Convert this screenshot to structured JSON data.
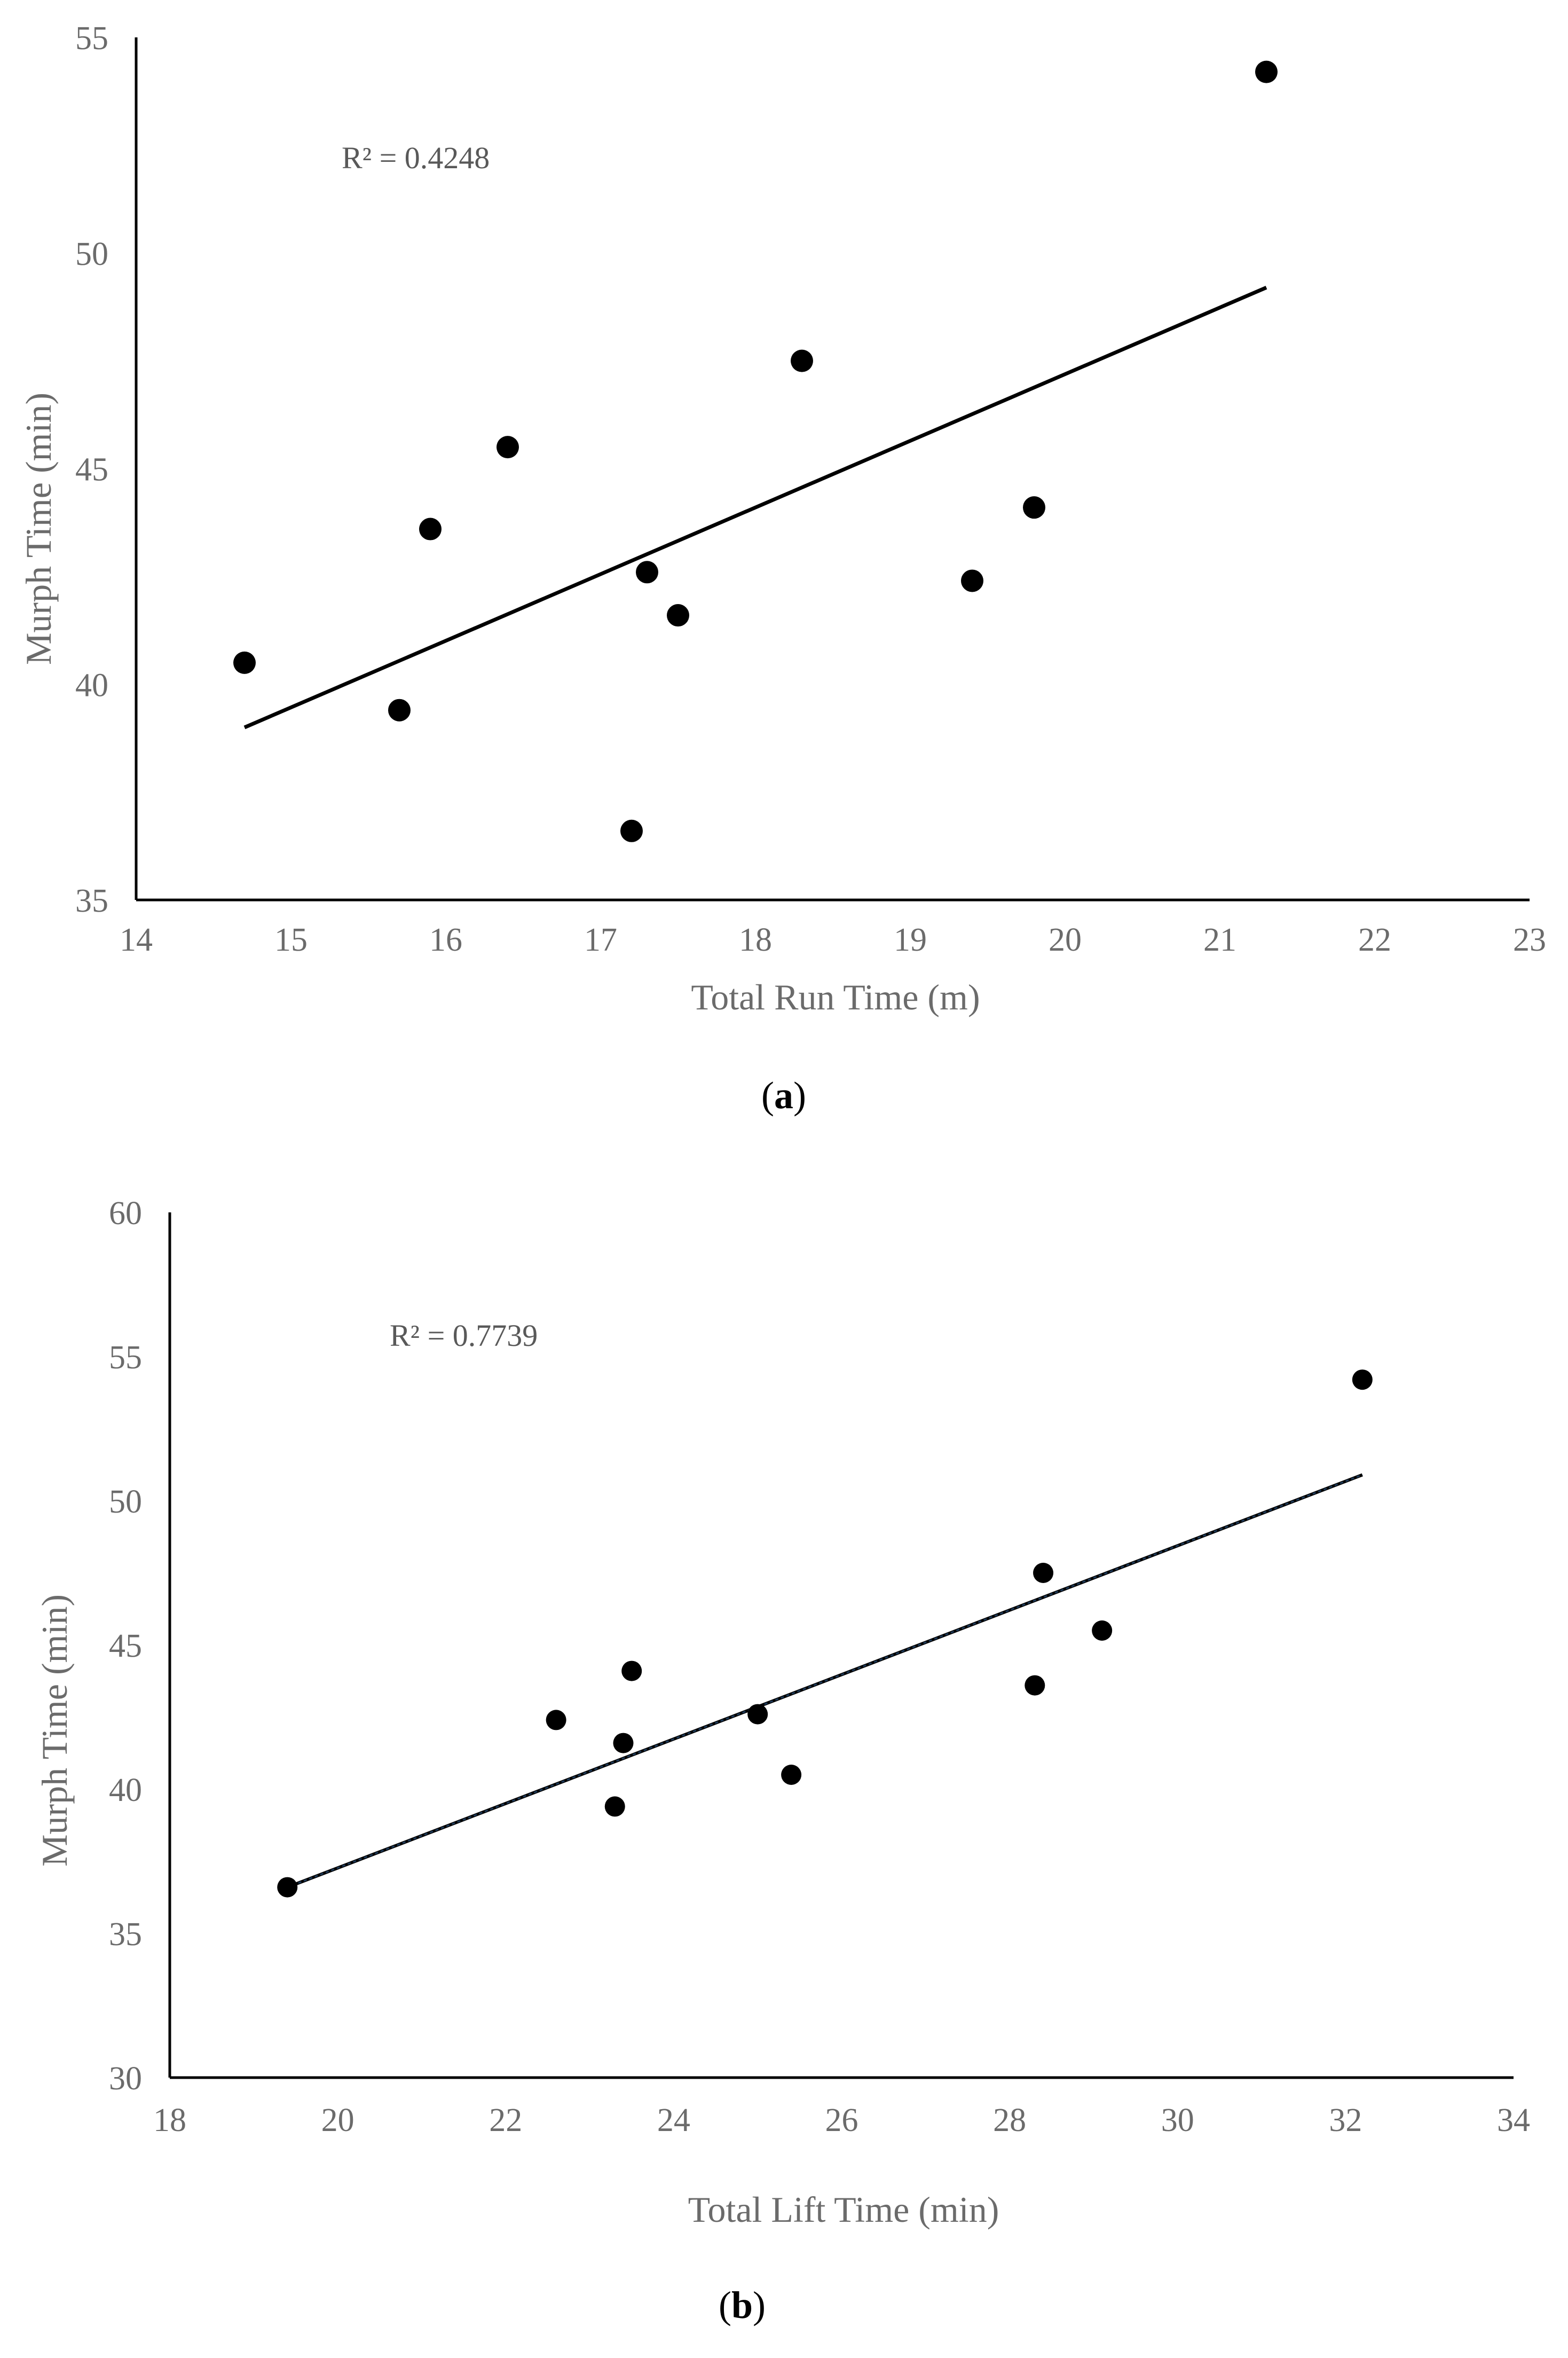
{
  "chart_data": [
    {
      "id": "a",
      "type": "scatter",
      "caption_paren_open": "(",
      "caption_letter": "a",
      "caption_paren_close": ")",
      "xlabel": "Total Run Time (m)",
      "ylabel": "Murph Time (min)",
      "xlim": [
        14,
        23
      ],
      "ylim": [
        35,
        55
      ],
      "xticks": [
        14,
        15,
        16,
        17,
        18,
        19,
        20,
        21,
        22,
        23
      ],
      "yticks": [
        35,
        40,
        45,
        50,
        55
      ],
      "r2_label": "R² = 0.4248",
      "points": [
        {
          "x": 14.7,
          "y": 40.5
        },
        {
          "x": 15.7,
          "y": 39.4
        },
        {
          "x": 15.9,
          "y": 43.6
        },
        {
          "x": 16.4,
          "y": 45.5
        },
        {
          "x": 17.2,
          "y": 36.6
        },
        {
          "x": 17.3,
          "y": 42.6
        },
        {
          "x": 17.5,
          "y": 41.6
        },
        {
          "x": 18.3,
          "y": 47.5
        },
        {
          "x": 19.4,
          "y": 42.4
        },
        {
          "x": 19.8,
          "y": 44.1
        },
        {
          "x": 21.3,
          "y": 54.2
        }
      ],
      "trendline": {
        "x": [
          14.7,
          21.3
        ],
        "y": [
          39.0,
          49.2
        ]
      },
      "grid": false
    },
    {
      "id": "b",
      "type": "scatter",
      "caption_paren_open": "(",
      "caption_letter": "b",
      "caption_paren_close": ")",
      "xlabel": "Total Lift Time (min)",
      "ylabel": "Murph Time (min)",
      "xlim": [
        18,
        34
      ],
      "ylim": [
        30,
        60
      ],
      "xticks": [
        18,
        20,
        22,
        24,
        26,
        28,
        30,
        32,
        34
      ],
      "yticks": [
        30,
        35,
        40,
        45,
        50,
        55,
        60
      ],
      "r2_label": "R² = 0.7739",
      "points": [
        {
          "x": 19.4,
          "y": 36.6
        },
        {
          "x": 22.6,
          "y": 42.4
        },
        {
          "x": 23.3,
          "y": 39.4
        },
        {
          "x": 23.4,
          "y": 41.6
        },
        {
          "x": 23.5,
          "y": 44.1
        },
        {
          "x": 25.0,
          "y": 42.6
        },
        {
          "x": 25.4,
          "y": 40.5
        },
        {
          "x": 28.3,
          "y": 43.6
        },
        {
          "x": 28.4,
          "y": 47.5
        },
        {
          "x": 29.1,
          "y": 45.5
        },
        {
          "x": 32.2,
          "y": 54.2
        }
      ],
      "trendline": {
        "x": [
          19.4,
          32.2
        ],
        "y": [
          36.6,
          50.9
        ]
      },
      "trendline_color": "#1f3b5a",
      "grid": false
    }
  ]
}
